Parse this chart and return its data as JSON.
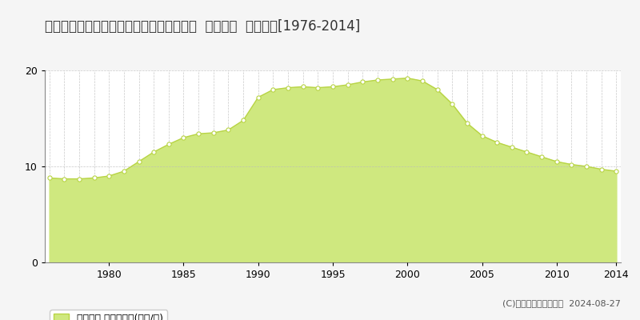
{
  "title": "兵庫県姫路市四郷町中鈴字下柏８１番１外  地価公示  地価推移[1976-2014]",
  "years": [
    1976,
    1977,
    1978,
    1979,
    1980,
    1981,
    1982,
    1983,
    1984,
    1985,
    1986,
    1987,
    1988,
    1989,
    1990,
    1991,
    1992,
    1993,
    1994,
    1995,
    1996,
    1997,
    1998,
    1999,
    2000,
    2001,
    2002,
    2003,
    2004,
    2005,
    2006,
    2007,
    2008,
    2009,
    2010,
    2011,
    2012,
    2013,
    2014
  ],
  "values": [
    8.8,
    8.7,
    8.7,
    8.8,
    9.0,
    9.5,
    10.5,
    11.5,
    12.3,
    13.0,
    13.4,
    13.5,
    13.8,
    14.8,
    17.2,
    18.0,
    18.2,
    18.3,
    18.2,
    18.3,
    18.5,
    18.8,
    19.0,
    19.1,
    19.2,
    18.9,
    18.0,
    16.5,
    14.5,
    13.2,
    12.5,
    12.0,
    11.5,
    11.0,
    10.5,
    10.2,
    10.0,
    9.7,
    9.5
  ],
  "fill_color": "#cfe87f",
  "line_color": "#b8d444",
  "marker_facecolor": "#ffffff",
  "marker_edgecolor": "#b8d444",
  "bg_color": "#f5f5f5",
  "plot_bg_color": "#ffffff",
  "grid_color": "#bbbbbb",
  "ylim": [
    0,
    20
  ],
  "yticks": [
    0,
    10,
    20
  ],
  "xtick_years": [
    1980,
    1985,
    1990,
    1995,
    2000,
    2005,
    2010,
    2014
  ],
  "legend_label": "地価公示 平均坪単価(万円/坪)",
  "legend_color": "#cfe87f",
  "legend_edge_color": "#b8d444",
  "copyright_text": "(C)土地価格ドットコム  2024-08-27",
  "title_fontsize": 12,
  "tick_fontsize": 9,
  "legend_fontsize": 9,
  "copyright_fontsize": 8
}
